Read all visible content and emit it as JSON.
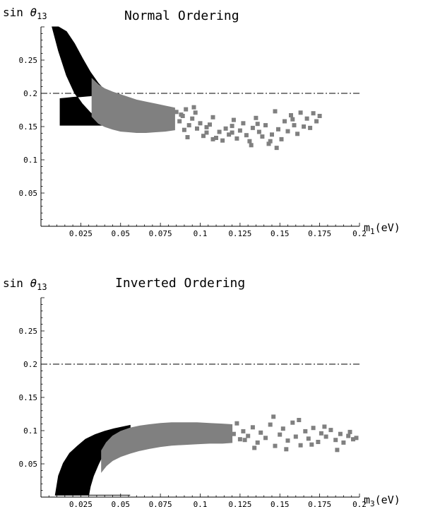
{
  "chart_data": [
    {
      "type": "scatter",
      "title": "Normal Ordering",
      "ylabel_prefix": "sin ",
      "ylabel_symbol": "θ",
      "ylabel_sub": "13",
      "xlabel_main": "m",
      "xlabel_sub": "1",
      "xlabel_unit": "(eV)",
      "xlim": [
        0,
        0.2
      ],
      "ylim": [
        0,
        0.3
      ],
      "xticks": [
        0.025,
        0.05,
        0.075,
        0.1,
        0.125,
        0.15,
        0.175,
        0.2
      ],
      "xtick_labels": [
        "0.025",
        "0.05",
        "0.075",
        "0.1",
        "0.125",
        "0.15",
        "0.175",
        "0.2"
      ],
      "yticks": [
        0.05,
        0.1,
        0.15,
        0.2,
        0.25
      ],
      "ytick_labels": [
        "0.05",
        "0.1",
        "0.15",
        "0.2",
        "0.25"
      ],
      "reference_line_y": 0.2,
      "grid": false,
      "black_region": {
        "x": [
          0.007,
          0.011,
          0.016,
          0.021,
          0.026,
          0.031,
          0.036,
          0.04,
          0.044,
          0.044,
          0.04,
          0.035,
          0.03,
          0.025,
          0.02,
          0.016,
          0.012
        ],
        "upper": [
          0.3,
          0.3,
          0.293,
          0.275,
          0.253,
          0.232,
          0.215,
          0.205,
          0.198,
          0.198,
          0.198,
          0.197,
          0.196,
          0.195,
          0.194,
          0.193,
          0.192
        ],
        "lower": [
          0.3,
          0.264,
          0.227,
          0.201,
          0.184,
          0.171,
          0.162,
          0.156,
          0.152,
          0.152,
          0.152,
          0.152,
          0.152,
          0.152,
          0.152,
          0.152,
          0.152
        ]
      },
      "gray_region": {
        "x": [
          0.032,
          0.036,
          0.04,
          0.045,
          0.05,
          0.055,
          0.06,
          0.066,
          0.072,
          0.078,
          0.084
        ],
        "upper": [
          0.222,
          0.213,
          0.207,
          0.202,
          0.198,
          0.194,
          0.19,
          0.187,
          0.184,
          0.181,
          0.178
        ],
        "lower": [
          0.165,
          0.155,
          0.15,
          0.146,
          0.143,
          0.142,
          0.141,
          0.141,
          0.142,
          0.143,
          0.145
        ]
      },
      "gray_points": {
        "x": [
          0.085,
          0.087,
          0.089,
          0.09,
          0.091,
          0.093,
          0.095,
          0.097,
          0.098,
          0.1,
          0.102,
          0.104,
          0.106,
          0.108,
          0.11,
          0.112,
          0.114,
          0.116,
          0.118,
          0.12,
          0.121,
          0.123,
          0.125,
          0.127,
          0.129,
          0.131,
          0.133,
          0.135,
          0.137,
          0.139,
          0.141,
          0.143,
          0.145,
          0.147,
          0.149,
          0.151,
          0.153,
          0.155,
          0.157,
          0.159,
          0.161,
          0.163,
          0.165,
          0.167,
          0.169,
          0.171,
          0.173,
          0.175,
          0.144,
          0.132,
          0.12,
          0.108,
          0.096,
          0.088,
          0.092,
          0.104,
          0.136,
          0.148,
          0.158
        ],
        "y": [
          0.172,
          0.158,
          0.166,
          0.145,
          0.176,
          0.152,
          0.162,
          0.171,
          0.147,
          0.155,
          0.136,
          0.141,
          0.153,
          0.164,
          0.133,
          0.142,
          0.129,
          0.147,
          0.138,
          0.151,
          0.16,
          0.132,
          0.144,
          0.155,
          0.137,
          0.128,
          0.148,
          0.163,
          0.142,
          0.135,
          0.152,
          0.124,
          0.138,
          0.173,
          0.146,
          0.131,
          0.158,
          0.143,
          0.167,
          0.152,
          0.139,
          0.171,
          0.15,
          0.162,
          0.148,
          0.17,
          0.158,
          0.166,
          0.128,
          0.122,
          0.141,
          0.131,
          0.179,
          0.168,
          0.134,
          0.149,
          0.154,
          0.118,
          0.161
        ]
      }
    },
    {
      "type": "scatter",
      "title": "Inverted Ordering",
      "ylabel_prefix": "sin ",
      "ylabel_symbol": "θ",
      "ylabel_sub": "13",
      "xlabel_main": "m",
      "xlabel_sub": "3",
      "xlabel_unit": "(eV)",
      "xlim": [
        0,
        0.2
      ],
      "ylim": [
        0,
        0.3
      ],
      "xticks": [
        0.025,
        0.05,
        0.075,
        0.1,
        0.125,
        0.15,
        0.175,
        0.2
      ],
      "xtick_labels": [
        "0.025",
        "0.05",
        "0.075",
        "0.1",
        "0.125",
        "0.15",
        "0.175",
        "0.2"
      ],
      "yticks": [
        0.05,
        0.1,
        0.15,
        0.2,
        0.25
      ],
      "ytick_labels": [
        "0.05",
        "0.1",
        "0.15",
        "0.2",
        "0.25"
      ],
      "reference_line_y": 0.2,
      "grid": false,
      "black_region": {
        "x": [
          0.009,
          0.011,
          0.014,
          0.018,
          0.023,
          0.028,
          0.034,
          0.04,
          0.046,
          0.052,
          0.056,
          0.056,
          0.052,
          0.048,
          0.045,
          0.042,
          0.039,
          0.036,
          0.033,
          0.031,
          0.03
        ],
        "upper": [
          0.003,
          0.032,
          0.051,
          0.066,
          0.077,
          0.087,
          0.094,
          0.099,
          0.103,
          0.106,
          0.108,
          0.098,
          0.094,
          0.089,
          0.083,
          0.075,
          0.064,
          0.049,
          0.032,
          0.016,
          0.003
        ],
        "lower": [
          0.003,
          0.003,
          0.003,
          0.003,
          0.003,
          0.003,
          0.003,
          0.003,
          0.003,
          0.003,
          0.003,
          0.003,
          0.003,
          0.003,
          0.003,
          0.003,
          0.003,
          0.003,
          0.003,
          0.003,
          0.003
        ]
      },
      "gray_region": {
        "x": [
          0.038,
          0.041,
          0.045,
          0.05,
          0.056,
          0.062,
          0.068,
          0.075,
          0.082,
          0.09,
          0.098,
          0.106,
          0.114,
          0.12
        ],
        "upper": [
          0.07,
          0.082,
          0.092,
          0.099,
          0.104,
          0.107,
          0.109,
          0.111,
          0.112,
          0.112,
          0.112,
          0.111,
          0.11,
          0.109
        ],
        "lower": [
          0.038,
          0.047,
          0.055,
          0.061,
          0.066,
          0.07,
          0.073,
          0.076,
          0.078,
          0.079,
          0.08,
          0.081,
          0.081,
          0.082
        ]
      },
      "gray_points": {
        "x": [
          0.118,
          0.121,
          0.123,
          0.125,
          0.127,
          0.13,
          0.133,
          0.136,
          0.138,
          0.141,
          0.144,
          0.147,
          0.15,
          0.152,
          0.155,
          0.158,
          0.16,
          0.163,
          0.166,
          0.168,
          0.171,
          0.174,
          0.176,
          0.179,
          0.182,
          0.185,
          0.188,
          0.19,
          0.193,
          0.196,
          0.198,
          0.146,
          0.154,
          0.162,
          0.17,
          0.178,
          0.186,
          0.194,
          0.134,
          0.128
        ],
        "y": [
          0.102,
          0.095,
          0.111,
          0.087,
          0.099,
          0.092,
          0.105,
          0.082,
          0.097,
          0.089,
          0.109,
          0.077,
          0.094,
          0.103,
          0.085,
          0.112,
          0.091,
          0.078,
          0.099,
          0.088,
          0.104,
          0.083,
          0.096,
          0.091,
          0.101,
          0.086,
          0.095,
          0.082,
          0.092,
          0.087,
          0.089,
          0.121,
          0.072,
          0.116,
          0.079,
          0.106,
          0.071,
          0.098,
          0.074,
          0.086
        ]
      }
    }
  ]
}
